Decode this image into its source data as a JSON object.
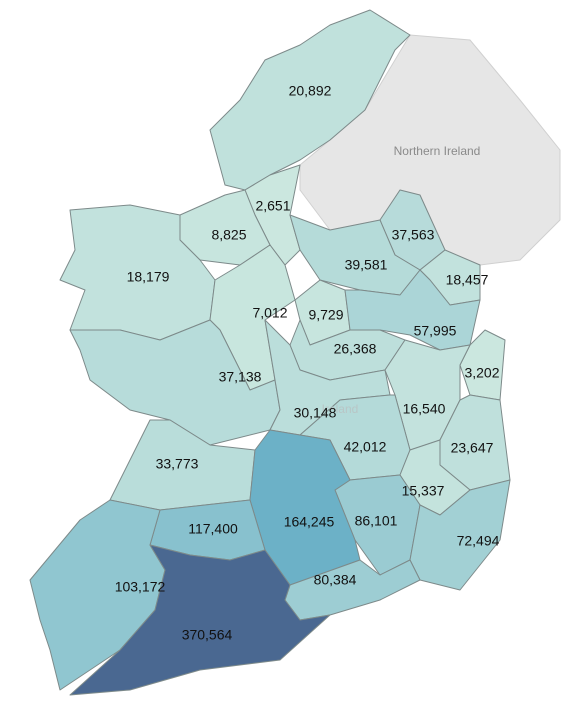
{
  "chart_data": {
    "type": "choropleth",
    "values": [
      20892,
      2651,
      8825,
      18179,
      37563,
      39581,
      18457,
      7012,
      9729,
      57995,
      26368,
      3202,
      37138,
      30148,
      16540,
      23647,
      42012,
      33773,
      15337,
      86101,
      72494,
      164245,
      117400,
      80384,
      103172,
      370564
    ],
    "value_labels": [
      "20,892",
      "2,651",
      "8,825",
      "18,179",
      "37,563",
      "39,581",
      "18,457",
      "7,012",
      "9,729",
      "57,995",
      "26,368",
      "3,202",
      "37,138",
      "30,148",
      "16,540",
      "23,647",
      "42,012",
      "33,773",
      "15,337",
      "86,101",
      "72,494",
      "164,245",
      "117,400",
      "80,384",
      "103,172",
      "370,564"
    ],
    "color_range": [
      "#cbe7df",
      "#6ab0c6",
      "#4a6891"
    ],
    "map_labels": [
      "Northern Ireland",
      "Ireland"
    ]
  }
}
